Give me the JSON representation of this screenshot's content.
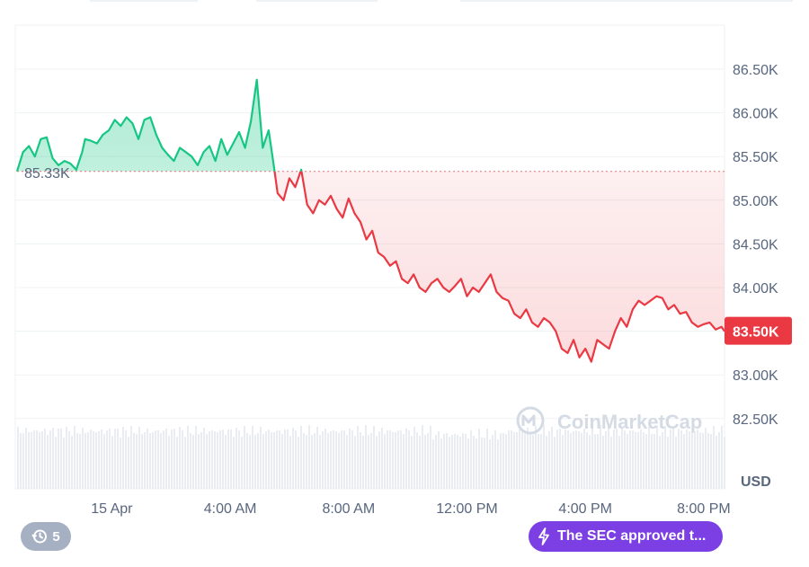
{
  "chart_data": {
    "type": "area",
    "unit": "USD",
    "baseline": 85.33,
    "baseline_label": "85.33K",
    "current_label": "83.50K",
    "ylim": [
      82.25,
      87.0
    ],
    "y_ticks": [
      {
        "v": 86.5,
        "label": "86.50K"
      },
      {
        "v": 86.0,
        "label": "86.00K"
      },
      {
        "v": 85.5,
        "label": "85.50K"
      },
      {
        "v": 85.0,
        "label": "85.00K"
      },
      {
        "v": 84.5,
        "label": "84.50K"
      },
      {
        "v": 84.0,
        "label": "84.00K"
      },
      {
        "v": 83.5,
        "label": "83.50K"
      },
      {
        "v": 83.0,
        "label": "83.00K"
      },
      {
        "v": 82.5,
        "label": "82.50K"
      }
    ],
    "x_ticks": [
      {
        "t": 0,
        "label": "15 Apr"
      },
      {
        "t": 4,
        "label": "4:00 AM"
      },
      {
        "t": 8,
        "label": "8:00 AM"
      },
      {
        "t": 12,
        "label": "12:00 PM"
      },
      {
        "t": 16,
        "label": "4:00 PM"
      },
      {
        "t": 20,
        "label": "8:00 PM"
      }
    ],
    "xlim": [
      -3.2,
      20.7
    ],
    "colors": {
      "up": "#16c784",
      "down": "#ea3943",
      "grid": "#eff2f5",
      "volume": "#e9ecf1"
    },
    "series": [
      {
        "x": [
          -3.2,
          -3.0,
          -2.8,
          -2.6,
          -2.4,
          -2.2,
          -2.0,
          -1.8,
          -1.6,
          -1.4,
          -1.2,
          -1.0,
          -0.9,
          -0.7,
          -0.5,
          -0.3,
          -0.1,
          0.1,
          0.3,
          0.5,
          0.7,
          0.9,
          1.1,
          1.3,
          1.5,
          1.7,
          1.9,
          2.1,
          2.3,
          2.5,
          2.7,
          2.9,
          3.1,
          3.3,
          3.5,
          3.7,
          3.9,
          4.1,
          4.3,
          4.5,
          4.7,
          4.9,
          5.1,
          5.3,
          5.5,
          5.6,
          5.8,
          6.0,
          6.1,
          6.2,
          6.4,
          6.6,
          6.8,
          7.0,
          7.2,
          7.4,
          7.6,
          7.8,
          8.0,
          8.2,
          8.4,
          8.6,
          8.8,
          9.0,
          9.2,
          9.4,
          9.6,
          9.8,
          10.0,
          10.2,
          10.4,
          10.6,
          10.8,
          11.0,
          11.2,
          11.4,
          11.6,
          11.8,
          12.0,
          12.2,
          12.4,
          12.6,
          12.8,
          13.0,
          13.2,
          13.4,
          13.6,
          13.8,
          14.0,
          14.2,
          14.4,
          14.6,
          14.8,
          15.0,
          15.2,
          15.4,
          15.6,
          15.8,
          16.0,
          16.2,
          16.4,
          16.6,
          16.8,
          17.0,
          17.2,
          17.4,
          17.6,
          17.8,
          18.0,
          18.2,
          18.4,
          18.6,
          18.8,
          19.0,
          19.2,
          19.4,
          19.6,
          19.8,
          20.0,
          20.2,
          20.4,
          20.6,
          20.7
        ],
        "y": [
          85.33,
          85.55,
          85.62,
          85.5,
          85.7,
          85.72,
          85.48,
          85.4,
          85.45,
          85.42,
          85.35,
          85.55,
          85.7,
          85.68,
          85.65,
          85.75,
          85.8,
          85.92,
          85.85,
          85.95,
          85.88,
          85.7,
          85.92,
          85.95,
          85.75,
          85.6,
          85.52,
          85.45,
          85.6,
          85.55,
          85.5,
          85.4,
          85.55,
          85.62,
          85.45,
          85.7,
          85.52,
          85.65,
          85.78,
          85.6,
          85.9,
          86.38,
          85.6,
          85.8,
          85.33,
          85.08,
          85.0,
          85.25,
          85.2,
          85.15,
          85.35,
          84.95,
          84.85,
          85.0,
          84.95,
          85.05,
          84.9,
          84.8,
          85.02,
          84.85,
          84.75,
          84.55,
          84.65,
          84.4,
          84.35,
          84.25,
          84.3,
          84.1,
          84.05,
          84.15,
          84.0,
          83.95,
          84.05,
          84.1,
          84.0,
          83.95,
          84.02,
          84.1,
          83.9,
          84.0,
          83.95,
          84.05,
          84.15,
          83.95,
          83.88,
          83.85,
          83.7,
          83.65,
          83.75,
          83.6,
          83.55,
          83.65,
          83.6,
          83.5,
          83.3,
          83.25,
          83.4,
          83.2,
          83.3,
          83.15,
          83.4,
          83.35,
          83.3,
          83.5,
          83.65,
          83.55,
          83.75,
          83.85,
          83.8,
          83.85,
          83.9,
          83.88,
          83.75,
          83.8,
          83.7,
          83.72,
          83.6,
          83.55,
          83.58,
          83.6,
          83.52,
          83.55,
          83.5
        ]
      }
    ]
  },
  "watermark": {
    "text": "CoinMarketCap"
  },
  "history": {
    "count": "5",
    "icon": "history-icon"
  },
  "news": {
    "text": "The SEC approved t...",
    "icon": "lightning-icon"
  }
}
